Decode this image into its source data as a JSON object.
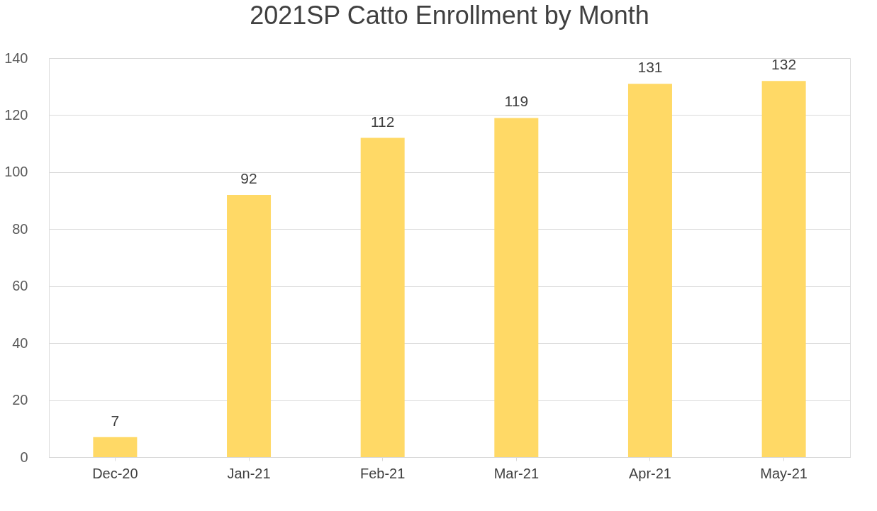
{
  "chart_data": {
    "type": "bar",
    "title": "2021SP Catto Enrollment by Month",
    "categories": [
      "Dec-20",
      "Jan-21",
      "Feb-21",
      "Mar-21",
      "Apr-21",
      "May-21"
    ],
    "values": [
      7,
      92,
      112,
      119,
      131,
      132
    ],
    "color": "#ffd966",
    "ylim": [
      0,
      140
    ],
    "yticks": [
      0,
      20,
      40,
      60,
      80,
      100,
      120,
      140
    ],
    "grid": "y",
    "data_labels": true
  }
}
